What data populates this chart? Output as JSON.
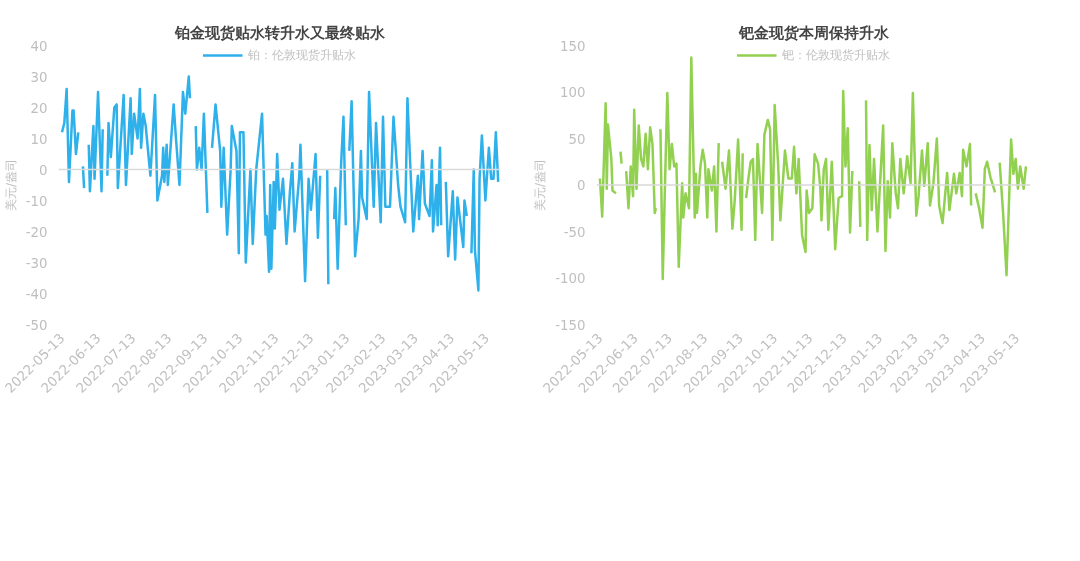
{
  "chart_data": [
    {
      "type": "line",
      "title": "铂金现货贴水转升水又最终贴水",
      "ylabel": "美元/盎司",
      "legend": "top",
      "grid": false,
      "xlim": [
        "2022-05-10",
        "2023-05-25"
      ],
      "ylim": [
        -50,
        40
      ],
      "yticks": [
        -50,
        -40,
        -30,
        -20,
        -10,
        0,
        10,
        20,
        30,
        40
      ],
      "xticks": [
        "2022-05-13",
        "2022-06-13",
        "2022-07-13",
        "2022-08-13",
        "2022-09-13",
        "2022-10-13",
        "2022-11-13",
        "2022-12-13",
        "2023-01-13",
        "2023-02-13",
        "2023-03-13",
        "2023-04-13",
        "2023-05-13"
      ],
      "ref_lines": [
        {
          "axis": "y",
          "value": 0,
          "color": "#d9d9d9"
        }
      ],
      "series": [
        {
          "name": "铂：伦敦现货升贴水",
          "color": "#2eb0ea",
          "x": [
            "2022-05-13",
            "2022-05-15",
            "2022-05-17",
            "2022-05-19",
            "2022-05-22",
            "2022-05-23",
            "2022-05-25",
            "2022-05-27",
            "2022-05-30",
            "2022-05-31",
            "2022-06-01",
            "2022-06-03",
            "2022-06-05",
            "2022-06-06",
            "2022-06-09",
            "2022-06-10",
            "2022-06-13",
            "2022-06-16",
            "2022-06-17",
            "2022-06-19",
            "2022-06-21",
            "2022-06-22",
            "2022-06-24",
            "2022-06-27",
            "2022-06-29",
            "2022-06-30",
            "2022-07-05",
            "2022-07-07",
            "2022-07-11",
            "2022-07-12",
            "2022-07-14",
            "2022-07-17",
            "2022-07-19",
            "2022-07-20",
            "2022-07-22",
            "2022-07-24",
            "2022-07-27",
            "2022-07-28",
            "2022-08-01",
            "2022-08-03",
            "2022-08-07",
            "2022-08-08",
            "2022-08-09",
            "2022-08-11",
            "2022-08-12",
            "2022-08-17",
            "2022-08-19",
            "2022-08-22",
            "2022-08-25",
            "2022-08-27",
            "2022-08-30",
            "2022-08-31",
            "2022-09-03",
            "2022-09-05",
            "2022-09-06",
            "2022-09-08",
            "2022-09-10",
            "2022-09-12",
            "2022-09-15",
            "2022-09-17",
            "2022-09-19",
            "2022-09-22",
            "2022-09-26",
            "2022-09-27",
            "2022-09-29",
            "2022-10-02",
            "2022-10-05",
            "2022-10-06",
            "2022-10-10",
            "2022-10-12",
            "2022-10-13",
            "2022-10-16",
            "2022-10-18",
            "2022-10-22",
            "2022-10-24",
            "2022-10-27",
            "2022-11-01",
            "2022-11-04",
            "2022-11-05",
            "2022-11-07",
            "2022-11-08",
            "2022-11-09",
            "2022-11-11",
            "2022-11-12",
            "2022-11-14",
            "2022-11-16",
            "2022-11-19",
            "2022-11-22",
            "2022-11-25",
            "2022-11-27",
            "2022-11-29",
            "2022-12-03",
            "2022-12-04",
            "2022-12-08",
            "2022-12-11",
            "2022-12-13",
            "2022-12-17",
            "2022-12-19",
            "2022-12-21",
            "2022-12-25",
            "2022-12-27",
            "2022-12-28",
            "2022-12-31",
            "2023-01-02",
            "2023-01-03",
            "2023-01-05",
            "2023-01-08",
            "2023-01-10",
            "2023-01-12",
            "2023-01-14",
            "2023-01-15",
            "2023-01-17",
            "2023-01-20",
            "2023-01-23",
            "2023-01-25",
            "2023-01-26",
            "2023-01-30",
            "2023-02-01",
            "2023-02-05",
            "2023-02-07",
            "2023-02-11",
            "2023-02-13",
            "2023-02-15",
            "2023-02-19",
            "2023-02-22",
            "2023-02-26",
            "2023-02-28",
            "2023-03-04",
            "2023-03-06",
            "2023-03-08",
            "2023-03-11",
            "2023-03-15",
            "2023-03-16",
            "2023-03-19",
            "2023-03-21",
            "2023-03-25",
            "2023-03-27",
            "2023-03-28",
            "2023-03-31",
            "2023-04-01",
            "2023-04-03",
            "2023-04-04",
            "2023-04-06",
            "2023-04-08",
            "2023-04-10",
            "2023-04-14",
            "2023-04-16",
            "2023-04-18",
            "2023-04-23",
            "2023-04-24",
            "2023-04-26",
            "2023-04-28",
            "2023-04-30",
            "2023-05-02",
            "2023-05-03",
            "2023-05-06",
            "2023-05-07",
            "2023-05-09",
            "2023-05-12",
            "2023-05-15",
            "2023-05-17",
            "2023-05-19",
            "2023-05-21",
            "2023-05-23"
          ],
          "values": [
            12,
            15,
            26,
            -4,
            19,
            19,
            5,
            12,
            null,
            1,
            -6,
            null,
            8,
            -7,
            14,
            -3,
            25,
            -7,
            13,
            null,
            -2,
            15,
            4,
            20,
            21,
            -6,
            24,
            -5,
            23,
            5,
            18,
            10,
            26,
            7,
            18,
            14,
            2,
            -2,
            24,
            -10,
            -2,
            7,
            -4,
            8,
            -5,
            21,
            10,
            -5,
            25,
            18,
            30,
            23,
            null,
            14,
            0,
            7,
            0,
            18,
            -14,
            null,
            7,
            21,
            6,
            -12,
            7,
            -21,
            0,
            14,
            6,
            -27,
            12,
            12,
            -30,
            0,
            -24,
            0,
            18,
            -21,
            -15,
            -33,
            -5,
            -32,
            -4,
            -19,
            5,
            -13,
            -3,
            -24,
            -7,
            2,
            -20,
            -2,
            8,
            -36,
            -3,
            -13,
            5,
            -22,
            -2,
            null,
            0,
            -37,
            null,
            -16,
            -6,
            -32,
            2,
            17,
            -18,
            null,
            6,
            22,
            -28,
            -16,
            6,
            -9,
            -16,
            25,
            -12,
            15,
            -17,
            17,
            -12,
            -12,
            17,
            -5,
            -12,
            -17,
            23,
            5,
            -20,
            -2,
            -16,
            6,
            -11,
            -15,
            3,
            -20,
            -5,
            -18,
            7,
            -18,
            null,
            -4,
            -28,
            -7,
            -29,
            -9,
            -25,
            -10,
            -15,
            null,
            -27,
            0,
            -26,
            -39,
            -3,
            11,
            -10,
            7,
            -3,
            -3,
            12,
            -4
          ]
        }
      ]
    },
    {
      "type": "line",
      "title": "钯金现货本周保持升水",
      "ylabel": "美元/盎司",
      "legend": "top",
      "grid": false,
      "xlim": [
        "2022-05-10",
        "2023-05-25"
      ],
      "ylim": [
        -150,
        150
      ],
      "yticks": [
        -150,
        -100,
        -50,
        0,
        50,
        100,
        150
      ],
      "xticks": [
        "2022-05-13",
        "2022-06-13",
        "2022-07-13",
        "2022-08-13",
        "2022-09-13",
        "2022-10-13",
        "2022-11-13",
        "2022-12-13",
        "2023-01-13",
        "2023-02-13",
        "2023-03-13",
        "2023-04-13",
        "2023-05-13"
      ],
      "ref_lines": [
        {
          "axis": "y",
          "value": 0,
          "color": "#d9d9d9"
        }
      ],
      "series": [
        {
          "name": "钯：伦敦现货升贴水",
          "color": "#92d050",
          "x": [
            "2022-05-13",
            "2022-05-15",
            "2022-05-18",
            "2022-05-19",
            "2022-05-20",
            "2022-05-23",
            "2022-05-24",
            "2022-05-27",
            "2022-05-29",
            "2022-05-31",
            "2022-06-01",
            "2022-06-03",
            "2022-06-05",
            "2022-06-07",
            "2022-06-09",
            "2022-06-11",
            "2022-06-12",
            "2022-06-14",
            "2022-06-16",
            "2022-06-18",
            "2022-06-20",
            "2022-06-22",
            "2022-06-24",
            "2022-06-26",
            "2022-06-28",
            "2022-06-30",
            "2022-07-01",
            "2022-07-03",
            "2022-07-05",
            "2022-07-07",
            "2022-07-09",
            "2022-07-11",
            "2022-07-13",
            "2022-07-15",
            "2022-07-17",
            "2022-07-19",
            "2022-07-21",
            "2022-07-24",
            "2022-07-25",
            "2022-07-27",
            "2022-07-30",
            "2022-08-01",
            "2022-08-04",
            "2022-08-05",
            "2022-08-06",
            "2022-08-09",
            "2022-08-11",
            "2022-08-13",
            "2022-08-15",
            "2022-08-16",
            "2022-08-19",
            "2022-08-21",
            "2022-08-23",
            "2022-08-25",
            "2022-08-27",
            "2022-08-28",
            "2022-08-31",
            "2022-09-03",
            "2022-09-06",
            "2022-09-08",
            "2022-09-11",
            "2022-09-14",
            "2022-09-15",
            "2022-09-17",
            "2022-09-18",
            "2022-09-20",
            "2022-09-22",
            "2022-09-24",
            "2022-09-26",
            "2022-09-28",
            "2022-10-02",
            "2022-10-04",
            "2022-10-07",
            "2022-10-09",
            "2022-10-11",
            "2022-10-13",
            "2022-10-16",
            "2022-10-18",
            "2022-10-22",
            "2022-10-25",
            "2022-10-28",
            "2022-10-30",
            "2022-11-01",
            "2022-11-03",
            "2022-11-06",
            "2022-11-09",
            "2022-11-10",
            "2022-11-12",
            "2022-11-15",
            "2022-11-17",
            "2022-11-20",
            "2022-11-22",
            "2022-11-23",
            "2022-11-25",
            "2022-11-27",
            "2022-11-29",
            "2022-12-02",
            "2022-12-05",
            "2022-12-08",
            "2022-12-11",
            "2022-12-12",
            "2022-12-14",
            "2022-12-16",
            "2022-12-18",
            "2022-12-20",
            "2022-12-24",
            "2022-12-26",
            "2022-12-27",
            "2022-12-30",
            "2023-01-01",
            "2023-01-02",
            "2023-01-04",
            "2023-01-06",
            "2023-01-08",
            "2023-01-11",
            "2023-01-16",
            "2023-01-18",
            "2023-01-20",
            "2023-01-22",
            "2023-01-24",
            "2023-01-27",
            "2023-01-29",
            "2023-01-31",
            "2023-02-03",
            "2023-02-06",
            "2023-02-09",
            "2023-02-11",
            "2023-02-14",
            "2023-02-16",
            "2023-02-19",
            "2023-02-21",
            "2023-02-24",
            "2023-02-26",
            "2023-03-01",
            "2023-03-04",
            "2023-03-06",
            "2023-03-09",
            "2023-03-13",
            "2023-03-15",
            "2023-03-19",
            "2023-03-21",
            "2023-03-24",
            "2023-03-26",
            "2023-03-27",
            "2023-03-30",
            "2023-04-02",
            "2023-04-03",
            "2023-04-06",
            "2023-04-07",
            "2023-04-10",
            "2023-04-13",
            "2023-04-15",
            "2023-04-17",
            "2023-04-20",
            "2023-04-24",
            "2023-04-27",
            "2023-04-28",
            "2023-05-01",
            "2023-05-04",
            "2023-05-08",
            "2023-05-10",
            "2023-05-12",
            "2023-05-14",
            "2023-05-16",
            "2023-05-19",
            "2023-05-21"
          ],
          "values": [
            7,
            -34,
            88,
            -4,
            65,
            28,
            -6,
            -9,
            null,
            36,
            23,
            null,
            15,
            -25,
            20,
            -12,
            81,
            -4,
            64,
            28,
            20,
            55,
            17,
            62,
            44,
            -30,
            -25,
            null,
            60,
            -101,
            2,
            99,
            17,
            44,
            20,
            23,
            -88,
            2,
            -35,
            -9,
            -25,
            137,
            -35,
            12,
            -30,
            20,
            38,
            23,
            -35,
            17,
            -6,
            20,
            -50,
            45,
            null,
            25,
            -4,
            37,
            -47,
            -17,
            49,
            -48,
            34,
            null,
            -14,
            7,
            25,
            28,
            -59,
            44,
            -30,
            54,
            70,
            60,
            -59,
            86,
            23,
            -38,
            37,
            7,
            7,
            41,
            -9,
            28,
            -54,
            -72,
            -6,
            -30,
            -25,
            33,
            23,
            -4,
            -38,
            17,
            28,
            -48,
            25,
            -69,
            -14,
            -12,
            101,
            20,
            61,
            -51,
            15,
            null,
            4,
            -45,
            null,
            91,
            -59,
            43,
            -27,
            28,
            -50,
            64,
            -71,
            4,
            -35,
            45,
            -9,
            -25,
            28,
            -9,
            31,
            2,
            99,
            -33,
            -12,
            37,
            -1,
            45,
            -22,
            2,
            50,
            -22,
            -41,
            13,
            -27,
            12,
            -9,
            13,
            -12,
            38,
            20,
            44,
            -22,
            null,
            -9,
            -25,
            -46,
            17,
            25,
            8,
            -8,
            null,
            24,
            -30,
            -97,
            49,
            12,
            28,
            -4,
            20,
            -4,
            20
          ]
        }
      ]
    }
  ]
}
